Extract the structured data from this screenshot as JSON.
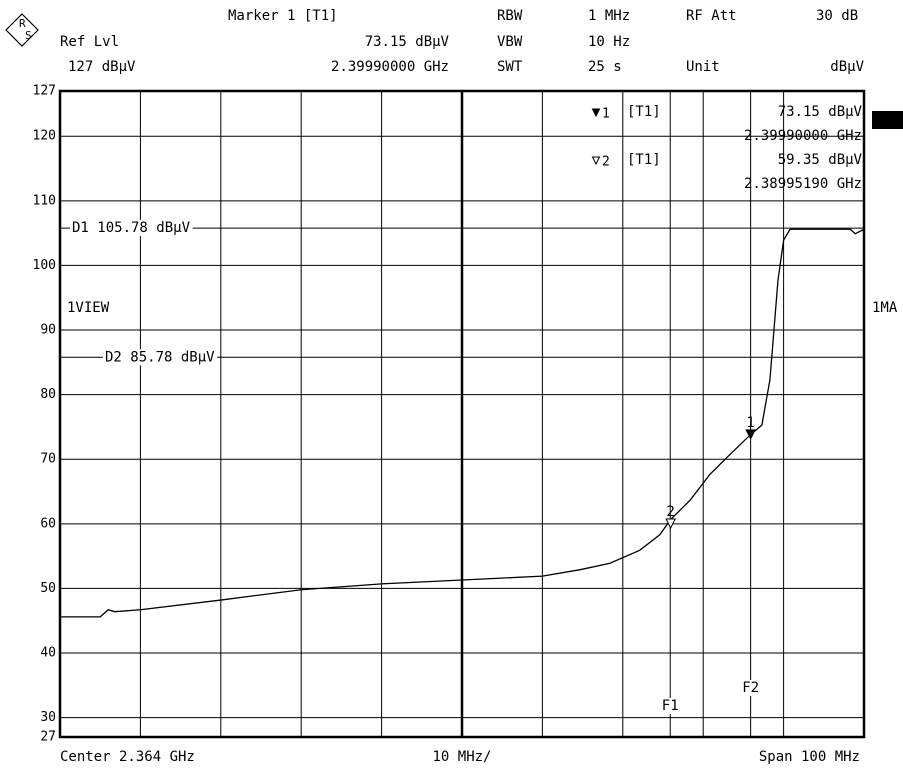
{
  "chart_data": {
    "type": "line",
    "logo": [
      "R",
      "S"
    ],
    "header": {
      "marker_title": "Marker 1 [T1]",
      "ref_label": "Ref Lvl",
      "ref_value": "127 dBμV",
      "rbw_label": "RBW",
      "rbw": "1 MHz",
      "vbw_label": "VBW",
      "vbw": "10 Hz",
      "swt_label": "SWT",
      "swt": "25 s",
      "att_label": "RF Att",
      "att": "30 dB",
      "unit_label": "Unit",
      "unit": "dBμV"
    },
    "left_label": "1VIEW",
    "right_label": "1MA",
    "footer": {
      "center": "Center 2.364 GHz",
      "div": "10 MHz/",
      "span": "Span 100 MHz"
    },
    "xlim": [
      2.314,
      2.414
    ],
    "ylim": [
      27,
      127
    ],
    "yticks": [
      27,
      30,
      40,
      50,
      60,
      70,
      80,
      90,
      100,
      110,
      120,
      127
    ],
    "grid": true,
    "x": [
      2.314,
      2.319,
      2.32,
      2.3208,
      2.324,
      2.334,
      2.344,
      2.354,
      2.364,
      2.374,
      2.3787,
      2.3824,
      2.3861,
      2.3886,
      2.3899,
      2.3924,
      2.3948,
      2.3973,
      2.3998,
      2.4013,
      2.4023,
      2.4033,
      2.404,
      2.4048,
      2.4123,
      2.4129,
      2.414
    ],
    "series": [
      {
        "name": "T1",
        "color": "#000000",
        "values": [
          45.6,
          45.6,
          46.7,
          46.4,
          46.7,
          48.2,
          49.8,
          50.7,
          51.3,
          51.9,
          52.9,
          53.9,
          55.9,
          58.3,
          60.6,
          63.7,
          67.6,
          70.7,
          73.7,
          75.3,
          82.3,
          97.7,
          103.9,
          105.6,
          105.6,
          104.9,
          105.6
        ]
      }
    ],
    "markers": [
      {
        "label": "1",
        "trace": "[T1]",
        "style": "filled",
        "x": 2.3999,
        "x_label": "2.39990000 GHz",
        "y": 73.15,
        "y_label": "73.15 dBμV"
      },
      {
        "label": "2",
        "trace": "[T1]",
        "style": "hollow",
        "x": 2.3899519,
        "x_label": "2.38995190 GHz",
        "y": 59.35,
        "y_label": "59.35 dBμV"
      }
    ],
    "display_lines": [
      {
        "label": "D1 105.78 dBμV",
        "value": 105.78
      },
      {
        "label": "D2 85.78 dBμV",
        "value": 85.78
      }
    ],
    "frequency_lines": [
      {
        "label": "F1",
        "x": 2.3899
      },
      {
        "label": "F2",
        "x": 2.3999
      }
    ]
  }
}
